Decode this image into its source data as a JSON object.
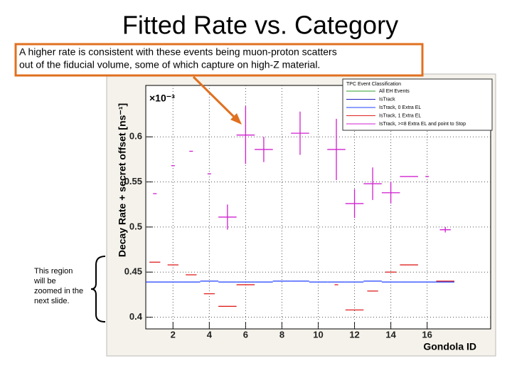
{
  "slide": {
    "title": "Fitted Rate vs. Category",
    "callout": [
      "A higher rate is consistent with these events being muon-proton scatters",
      "out of the fiducial volume, some of which capture on high-Z material."
    ],
    "side_note": [
      "This region",
      "will be",
      "zoomed in the",
      "next slide."
    ]
  },
  "chart_data": {
    "type": "errorbar",
    "x_label": "Gondola ID",
    "y_label": "Decay Rate + secret offset [ns⁻¹]",
    "y_exponent": "×10⁻³",
    "legend_title": "TPC Event Classification",
    "legend": "top-right",
    "grid": true,
    "xlim": [
      0.5,
      19.5
    ],
    "ylim": [
      0.387,
      0.657
    ],
    "xticks": [
      2,
      4,
      6,
      8,
      10,
      12,
      14,
      16
    ],
    "yticks": [
      0.4,
      0.45,
      0.5,
      0.55,
      0.6
    ],
    "series": [
      {
        "name": "All EH Events",
        "color": "#2ca02c",
        "x": [],
        "values": [],
        "errors": [],
        "xerr": []
      },
      {
        "name": "IsTrack",
        "color": "#1f1fbf",
        "x": [],
        "values": [],
        "errors": [],
        "xerr": []
      },
      {
        "name": "IsTrack, 0 Extra EL",
        "color": "#1f3fff",
        "x": [
          1,
          2,
          3,
          4,
          5,
          6,
          7,
          8,
          9,
          10,
          11,
          12,
          13,
          14,
          15,
          16,
          17
        ],
        "values": [
          0.439,
          0.439,
          0.439,
          0.44,
          0.439,
          0.439,
          0.439,
          0.44,
          0.44,
          0.439,
          0.439,
          0.439,
          0.44,
          0.439,
          0.439,
          0.439,
          0.439
        ],
        "errors": [
          0,
          0,
          0,
          0,
          0,
          0,
          0,
          0,
          0,
          0,
          0,
          0,
          0,
          0,
          0,
          0,
          0
        ],
        "xerr": [
          0.5,
          0.5,
          0.5,
          0.5,
          0.5,
          0.5,
          0.5,
          0.5,
          0.5,
          0.5,
          0.5,
          0.5,
          0.5,
          0.5,
          0.5,
          0.5,
          0.5
        ]
      },
      {
        "name": "IsTrack, 1 Extra EL",
        "color": "#e02020",
        "x": [
          1,
          2,
          3,
          4,
          5,
          6,
          11,
          12,
          13,
          14,
          15,
          17
        ],
        "values": [
          0.461,
          0.458,
          0.447,
          0.426,
          0.412,
          0.436,
          0.436,
          0.408,
          0.429,
          0.45,
          0.458,
          0.44
        ],
        "errors": [
          0,
          0,
          0,
          0,
          0,
          0,
          0,
          0,
          0,
          0,
          0,
          0
        ],
        "xerr": [
          0.3,
          0.3,
          0.3,
          0.3,
          0.5,
          0.5,
          0.1,
          0.5,
          0.3,
          0.3,
          0.5,
          0.5
        ]
      },
      {
        "name": "IsTrack, >=8 Extra EL and point to Stop",
        "color": "#d020d0",
        "x": [
          1,
          2,
          3,
          4,
          5,
          6,
          7,
          9,
          11,
          12,
          13,
          14,
          15,
          16,
          17
        ],
        "values": [
          0.537,
          0.568,
          0.584,
          0.559,
          0.511,
          0.602,
          0.586,
          0.604,
          0.586,
          0.526,
          0.548,
          0.538,
          0.556,
          0.556,
          0.497
        ],
        "errors": [
          0,
          0,
          0,
          0,
          0.014,
          0.032,
          0.014,
          0.024,
          0.034,
          0.016,
          0.018,
          0.012,
          0,
          0,
          0.003
        ],
        "xerr": [
          0.1,
          0.1,
          0.1,
          0.1,
          0.5,
          0.5,
          0.5,
          0.5,
          0.5,
          0.5,
          0.5,
          0.5,
          0.5,
          0.1,
          0.3
        ]
      }
    ]
  }
}
